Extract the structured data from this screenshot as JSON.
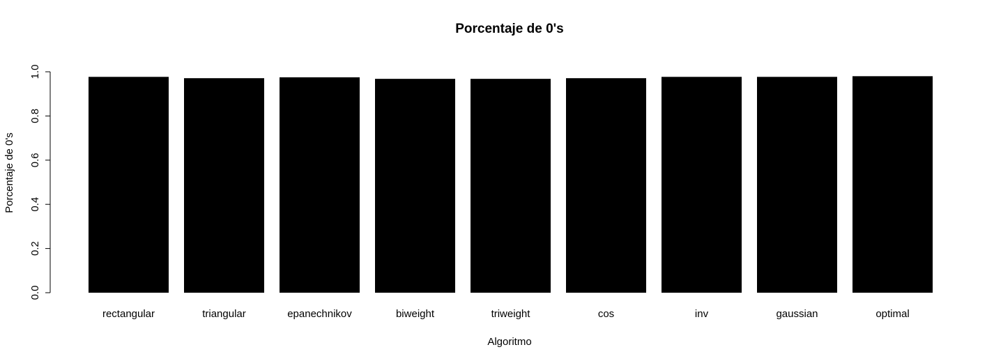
{
  "chart_data": {
    "type": "bar",
    "title": "Porcentaje de 0's",
    "xlabel": "Algoritmo",
    "ylabel": "Porcentaje de 0's",
    "ylim": [
      0,
      1
    ],
    "yticks": [
      "0.0",
      "0.2",
      "0.4",
      "0.6",
      "0.8",
      "1.0"
    ],
    "categories": [
      "rectangular",
      "triangular",
      "epanechnikov",
      "biweight",
      "triweight",
      "cos",
      "inv",
      "gaussian",
      "optimal"
    ],
    "values": [
      0.977,
      0.971,
      0.975,
      0.968,
      0.968,
      0.971,
      0.977,
      0.977,
      0.98
    ],
    "bar_color": "#000000",
    "grid": false,
    "legend": "none"
  }
}
